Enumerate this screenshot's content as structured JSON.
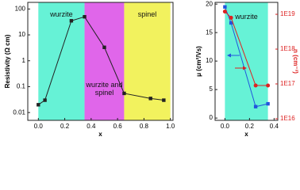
{
  "chart_data": [
    {
      "type": "line",
      "xlabel": "x",
      "ylabel": "Resistivity (Ω cm)",
      "log_y": true,
      "x": [
        0,
        0.05,
        0.25,
        0.35,
        0.5,
        0.65,
        0.85,
        0.95
      ],
      "series": [
        {
          "color": "#222222",
          "marker": "square",
          "values": [
            0.02,
            0.03,
            35,
            50,
            3.3,
            0.055,
            0.035,
            0.03
          ]
        }
      ],
      "xlim": [
        -0.08,
        1.02
      ],
      "ylim": [
        0.005,
        180
      ],
      "xticks": [
        {
          "value": 0,
          "label": "0.0"
        },
        0.2,
        0.4,
        0.6,
        0.8,
        {
          "value": 1,
          "label": "1.0"
        }
      ],
      "yticks": [
        0.01,
        0.1,
        1,
        10,
        100
      ],
      "regions": [
        {
          "label": "wurzite",
          "from": 0,
          "to": 0.35,
          "color": "#66f2d6"
        },
        {
          "label": "wurzite and spinel",
          "from": 0.35,
          "to": 0.65,
          "color": "#e066ea"
        },
        {
          "label": "spinel",
          "from": 0.65,
          "to": 1.0,
          "color": "#f2f25e"
        }
      ]
    },
    {
      "type": "line",
      "xlabel": "x",
      "ylabel": "μ (cm²/Vs)",
      "y2label": "n (cm⁻³)",
      "log_y2": true,
      "x": [
        0,
        0.05,
        0.25,
        0.35
      ],
      "series": [
        {
          "color": "#2255dd",
          "marker": "square",
          "values": [
            19.5,
            16.7,
            2,
            2.5
          ]
        },
        {
          "color": "#dd2222",
          "marker": "circle",
          "axis": "y2",
          "values": [
            1.2e+19,
            8e+18,
            9e+16,
            9e+16
          ]
        }
      ],
      "xlim": [
        -0.08,
        0.43
      ],
      "ylim": [
        -0.4,
        20.3
      ],
      "y2lim": [
        9000000000000000.0,
        2.2e+19
      ],
      "xticks": [
        {
          "value": 0,
          "label": "0.0"
        },
        0.2,
        0.4
      ],
      "yticks": [
        0,
        5,
        10,
        15,
        20
      ],
      "y2ticks": [
        {
          "value": 1e+16,
          "label": "1E16"
        },
        {
          "value": 1e+17,
          "label": "1E17"
        },
        {
          "value": 1e+18,
          "label": "1E18"
        },
        {
          "value": 1e+19,
          "label": "1E19"
        }
      ],
      "regions": [
        {
          "label": "wurzite",
          "from": 0,
          "to": 0.35,
          "color": "#66f2d6"
        }
      ]
    }
  ]
}
